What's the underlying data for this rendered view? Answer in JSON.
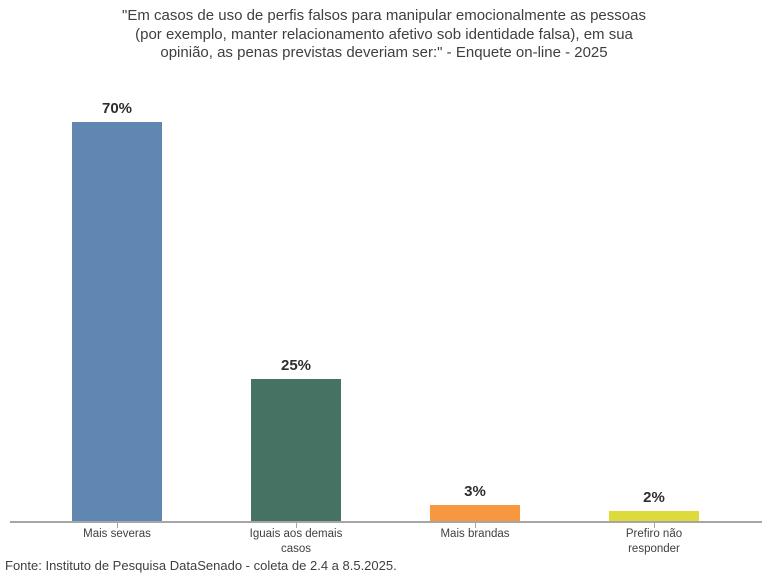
{
  "title": {
    "lines": [
      "\"Em casos de uso de perfis falsos para manipular emocionalmente as pessoas",
      "(por exemplo, manter relacionamento afetivo sob identidade falsa), em sua",
      "opinião, as penas previstas deveriam ser:\" - Enquete on-line - 2025"
    ]
  },
  "chart_data": {
    "type": "bar",
    "title": "\"Em casos de uso de perfis falsos para manipular emocionalmente as pessoas (por exemplo, manter relacionamento afetivo sob identidade falsa), em sua opinião, as penas previstas deveriam ser:\" - Enquete on-line - 2025",
    "categories": [
      "Mais severas",
      "Iguais aos demais casos",
      "Mais brandas",
      "Prefiro não responder"
    ],
    "values": [
      70,
      25,
      3,
      2
    ],
    "value_labels": [
      "70%",
      "25%",
      "3%",
      "2%"
    ],
    "xlabel": "",
    "ylabel": "",
    "grid": false,
    "legend": false,
    "bars": [
      {
        "category": "Mais severas",
        "value": 70,
        "display": "70%",
        "color": "#6086b2"
      },
      {
        "category": "Iguais aos demais casos",
        "value": 25,
        "display": "25%",
        "color": "#467264"
      },
      {
        "category": "Mais brandas",
        "value": 3,
        "display": "3%",
        "color": "#f79840"
      },
      {
        "category": "Prefiro não responder",
        "value": 2,
        "display": "2%",
        "color": "#dddb3c"
      }
    ]
  },
  "footer": {
    "source": "Fonte: Instituto de Pesquisa DataSenado - coleta de 2.4 a 8.5.2025."
  },
  "colors": {
    "axis": "#a6a6a6",
    "text": "#3f3f3f",
    "value_label_text": "#2e2e2e",
    "background": "#ffffff"
  }
}
